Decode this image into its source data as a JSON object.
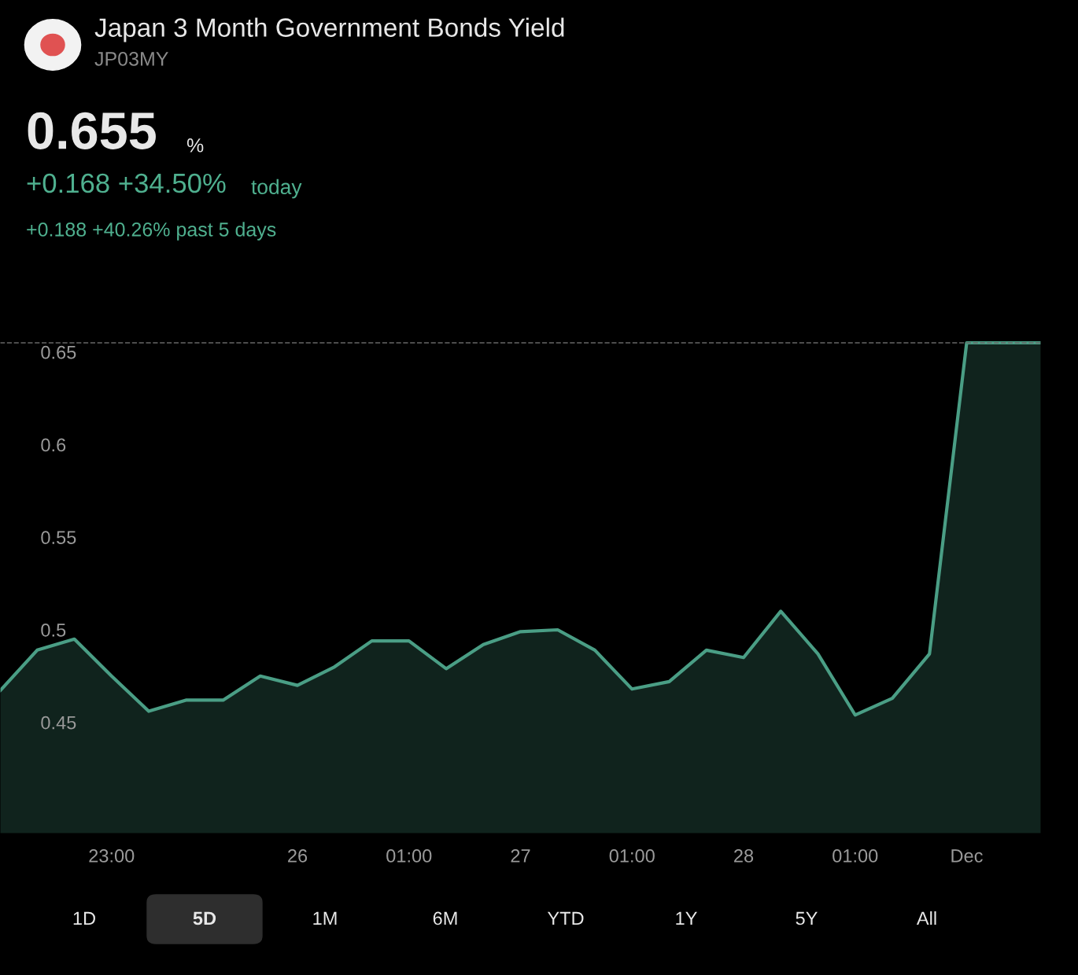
{
  "chart_data": {
    "type": "area",
    "title": "Japan 3 Month Government Bonds Yield",
    "subtitle": "JP03MY",
    "annotations": [
      "0.655",
      "%",
      "+0.168 +34.50%",
      "today",
      "+0.188 +40.26% past 5 days",
      "1D",
      "5D",
      "1M",
      "6M",
      "YTD",
      "1Y",
      "5Y",
      "All"
    ],
    "categories": [
      null,
      null,
      null,
      "23:00",
      null,
      null,
      null,
      null,
      "26",
      null,
      null,
      "01:00",
      null,
      null,
      "27",
      null,
      null,
      "01:00",
      null,
      null,
      "28",
      null,
      null,
      "01:00",
      null,
      null,
      "Dec",
      null,
      null
    ],
    "series": [
      {
        "color": "#4a9e85",
        "values": [
          0.467,
          0.489,
          0.495,
          0.475,
          0.456,
          0.462,
          0.462,
          0.475,
          0.47,
          0.48,
          0.494,
          0.494,
          0.479,
          0.492,
          0.499,
          0.5,
          0.489,
          0.468,
          0.472,
          0.489,
          0.485,
          0.51,
          0.487,
          0.454,
          0.463,
          0.487,
          0.655,
          0.655,
          0.655
        ]
      }
    ],
    "ylim": [
      0.39,
      0.7
    ],
    "yticks": [
      0.45,
      0.5,
      0.55,
      0.6,
      0.65
    ],
    "ref_lines": [
      {
        "axis": "y",
        "value": 0.655,
        "color": "#666666",
        "line_style": "dashed"
      }
    ],
    "grid": false,
    "legend": false
  }
}
